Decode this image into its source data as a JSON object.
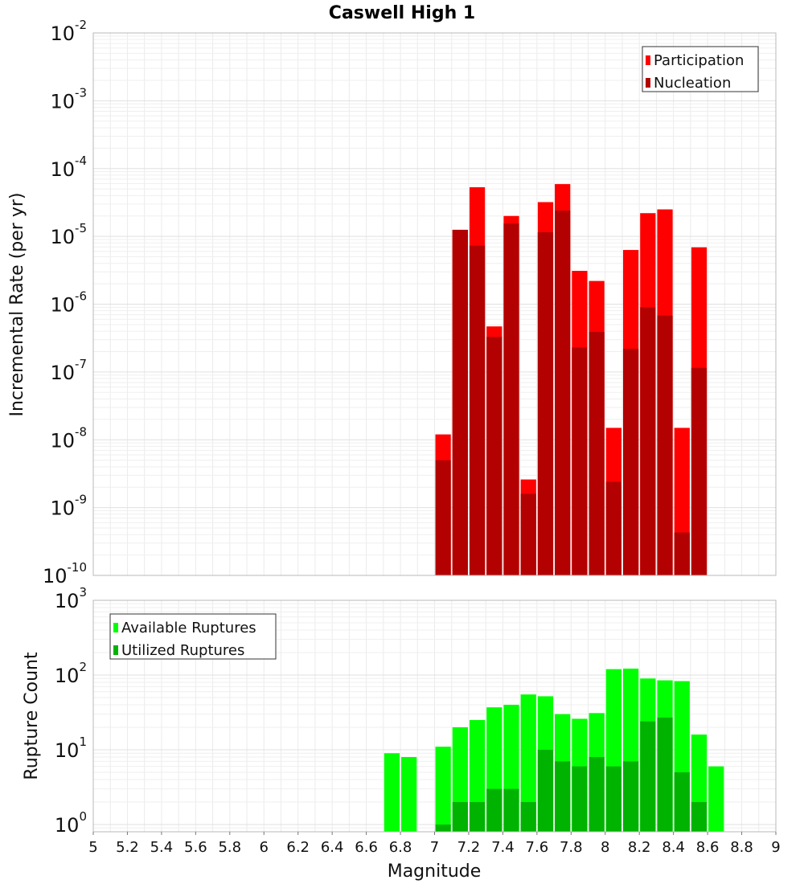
{
  "chart_data": [
    {
      "type": "bar",
      "title": "Caswell High 1",
      "ylabel": "Incremental Rate (per yr)",
      "xlabel": "",
      "yscale": "log",
      "ylim": [
        1e-10,
        0.01
      ],
      "xlim": [
        5,
        9
      ],
      "grid": true,
      "legend_position": "top-right",
      "ytick_labels": [
        {
          "value": 1e-10,
          "base": "10",
          "exp": "-10"
        },
        {
          "value": 1e-09,
          "base": "10",
          "exp": "-9"
        },
        {
          "value": 1e-08,
          "base": "10",
          "exp": "-8"
        },
        {
          "value": 1e-07,
          "base": "10",
          "exp": "-7"
        },
        {
          "value": 1e-06,
          "base": "10",
          "exp": "-6"
        },
        {
          "value": 1e-05,
          "base": "10",
          "exp": "-5"
        },
        {
          "value": 0.0001,
          "base": "10",
          "exp": "-4"
        },
        {
          "value": 0.001,
          "base": "10",
          "exp": "-3"
        },
        {
          "value": 0.01,
          "base": "10",
          "exp": "-2"
        }
      ],
      "x": [
        7.05,
        7.15,
        7.25,
        7.35,
        7.45,
        7.55,
        7.65,
        7.75,
        7.85,
        7.95,
        8.05,
        8.15,
        8.25,
        8.35,
        8.45,
        8.55
      ],
      "series": [
        {
          "name": "Participation",
          "color": "#ff0000",
          "values": [
            1.2e-08,
            1.25e-05,
            5.3e-05,
            4.7e-07,
            2e-05,
            2.6e-09,
            3.2e-05,
            5.9e-05,
            3.1e-06,
            2.2e-06,
            1.5e-08,
            6.3e-06,
            2.2e-05,
            2.5e-05,
            1.5e-08,
            6.9e-06
          ]
        },
        {
          "name": "Nucleation",
          "color": "#b30000",
          "values": [
            5e-09,
            1.25e-05,
            7.3e-06,
            3.3e-07,
            1.55e-05,
            1.6e-09,
            1.15e-05,
            2.4e-05,
            2.3e-07,
            3.9e-07,
            2.4e-09,
            2.2e-07,
            9e-07,
            6.8e-07,
            4.3e-10,
            1.15e-07
          ]
        }
      ]
    },
    {
      "type": "bar",
      "title": "",
      "ylabel": "Rupture Count",
      "xlabel": "Magnitude",
      "yscale": "log",
      "ylim": [
        0.8,
        1000
      ],
      "xlim": [
        5,
        9
      ],
      "grid": true,
      "legend_position": "top-left",
      "ytick_labels": [
        {
          "value": 1,
          "base": "10",
          "exp": "0"
        },
        {
          "value": 10,
          "base": "10",
          "exp": "1"
        },
        {
          "value": 100,
          "base": "10",
          "exp": "2"
        },
        {
          "value": 1000,
          "base": "10",
          "exp": "3"
        }
      ],
      "xtick_labels": [
        "5",
        "5.2",
        "5.4",
        "5.6",
        "5.8",
        "6",
        "6.2",
        "6.4",
        "6.6",
        "6.8",
        "7",
        "7.2",
        "7.4",
        "7.6",
        "7.8",
        "8",
        "8.2",
        "8.4",
        "8.6",
        "8.8",
        "9"
      ],
      "x": [
        6.75,
        6.85,
        6.95,
        7.05,
        7.15,
        7.25,
        7.35,
        7.45,
        7.55,
        7.65,
        7.75,
        7.85,
        7.95,
        8.05,
        8.15,
        8.25,
        8.35,
        8.45,
        8.55,
        8.65
      ],
      "series": [
        {
          "name": "Available Ruptures",
          "color": "#00ff00",
          "values": [
            9,
            8,
            0,
            11,
            20,
            25,
            37,
            40,
            55,
            52,
            30,
            26,
            31,
            120,
            122,
            90,
            85,
            83,
            16,
            6
          ]
        },
        {
          "name": "Utilized Ruptures",
          "color": "#00b300",
          "values": [
            0,
            0,
            0,
            1,
            2,
            2,
            3,
            3,
            2,
            10,
            7,
            6,
            8,
            6,
            7,
            24,
            27,
            5,
            2,
            0
          ]
        }
      ]
    }
  ]
}
